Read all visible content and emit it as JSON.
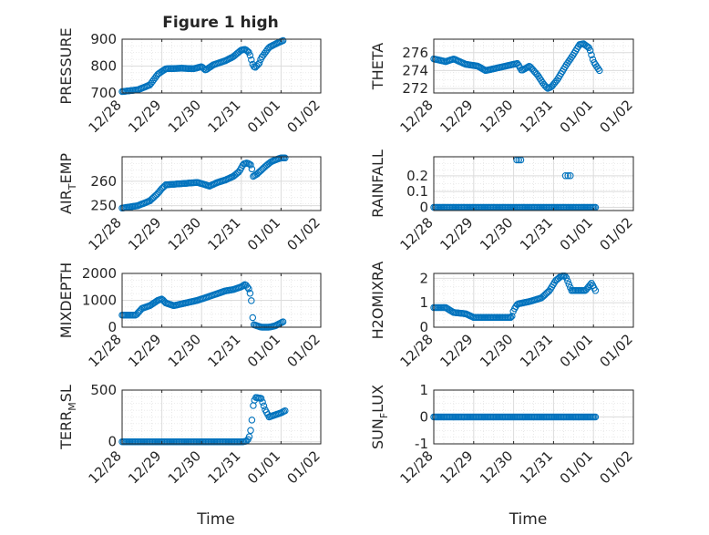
{
  "figure": {
    "title": "Figure 1 high",
    "marker_color": "#0072BD",
    "time_label": "Time"
  },
  "chart_data": [
    {
      "type": "scatter",
      "ylabel": "PRESSURE",
      "title": "Figure 1 high",
      "xlim": [
        0,
        5
      ],
      "ylim": [
        700,
        900
      ],
      "yticks": [
        700,
        800,
        900
      ],
      "xtick_labels": [
        "12/28",
        "12/29",
        "12/30",
        "12/31",
        "01/01",
        "01/02"
      ],
      "grid": "minor+major",
      "series": [
        {
          "anchors": [
            [
              0,
              705
            ],
            [
              0.4,
              712
            ],
            [
              0.7,
              730
            ],
            [
              0.9,
              770
            ],
            [
              1.1,
              790
            ],
            [
              1.5,
              792
            ],
            [
              1.8,
              790
            ],
            [
              2.0,
              798
            ],
            [
              2.1,
              785
            ],
            [
              2.3,
              805
            ],
            [
              2.6,
              820
            ],
            [
              2.8,
              835
            ],
            [
              3.0,
              860
            ],
            [
              3.1,
              862
            ],
            [
              3.2,
              850
            ],
            [
              3.3,
              800
            ],
            [
              3.35,
              795
            ],
            [
              3.45,
              810
            ],
            [
              3.5,
              830
            ],
            [
              3.7,
              870
            ],
            [
              3.9,
              885
            ],
            [
              4.05,
              895
            ]
          ]
        }
      ]
    },
    {
      "type": "scatter",
      "ylabel": "THETA",
      "xlim": [
        0,
        5
      ],
      "ylim": [
        271.5,
        277.5
      ],
      "yticks": [
        272,
        274,
        276
      ],
      "xtick_labels": [
        "12/28",
        "12/29",
        "12/30",
        "12/31",
        "01/01",
        "01/02"
      ],
      "grid": "minor+major",
      "series": [
        {
          "anchors": [
            [
              0,
              275.3
            ],
            [
              0.3,
              275.0
            ],
            [
              0.5,
              275.3
            ],
            [
              0.8,
              274.7
            ],
            [
              1.1,
              274.5
            ],
            [
              1.3,
              274.0
            ],
            [
              1.6,
              274.3
            ],
            [
              1.9,
              274.6
            ],
            [
              2.1,
              274.8
            ],
            [
              2.2,
              274.0
            ],
            [
              2.4,
              274.5
            ],
            [
              2.6,
              273.5
            ],
            [
              2.75,
              272.5
            ],
            [
              2.85,
              272.0
            ],
            [
              2.95,
              272.2
            ],
            [
              3.1,
              273.0
            ],
            [
              3.3,
              274.5
            ],
            [
              3.5,
              275.8
            ],
            [
              3.65,
              276.9
            ],
            [
              3.75,
              277.0
            ],
            [
              3.9,
              276.5
            ],
            [
              4.0,
              275.0
            ],
            [
              4.15,
              274.0
            ]
          ]
        }
      ]
    },
    {
      "type": "scatter",
      "ylabel": "AIR_T EMP",
      "ylabel_parts": [
        "AIR",
        "T",
        "EMP"
      ],
      "xlim": [
        0,
        5
      ],
      "ylim": [
        248,
        270
      ],
      "yticks": [
        250,
        260
      ],
      "xtick_labels": [
        "12/28",
        "12/29",
        "12/30",
        "12/31",
        "01/01",
        "01/02"
      ],
      "grid": "minor+major",
      "series": [
        {
          "anchors": [
            [
              0,
              249
            ],
            [
              0.4,
              250
            ],
            [
              0.7,
              252
            ],
            [
              0.9,
              255
            ],
            [
              1.0,
              257
            ],
            [
              1.1,
              258.5
            ],
            [
              1.5,
              259
            ],
            [
              1.9,
              259.5
            ],
            [
              2.1,
              258.5
            ],
            [
              2.2,
              258
            ],
            [
              2.4,
              259.5
            ],
            [
              2.6,
              260.5
            ],
            [
              2.8,
              262
            ],
            [
              2.95,
              264
            ],
            [
              3.05,
              267
            ],
            [
              3.15,
              267.5
            ],
            [
              3.25,
              266.5
            ],
            [
              3.3,
              262
            ],
            [
              3.4,
              263
            ],
            [
              3.5,
              264.5
            ],
            [
              3.6,
              266
            ],
            [
              3.75,
              268
            ],
            [
              3.9,
              269
            ],
            [
              4.0,
              269.5
            ],
            [
              4.1,
              269.5
            ]
          ]
        }
      ]
    },
    {
      "type": "scatter",
      "ylabel": "RAINFALL",
      "xlim": [
        0,
        5
      ],
      "ylim": [
        -0.02,
        0.32
      ],
      "yticks": [
        0,
        0.1,
        0.2
      ],
      "xtick_labels": [
        "12/28",
        "12/29",
        "12/30",
        "12/31",
        "01/01",
        "01/02"
      ],
      "grid": "minor+major",
      "series": [
        {
          "anchors": [
            [
              0,
              0
            ],
            [
              4.05,
              0
            ]
          ],
          "extra_points": [
            [
              2.08,
              0.3
            ],
            [
              2.13,
              0.3
            ],
            [
              2.18,
              0.3
            ],
            [
              3.3,
              0.2
            ],
            [
              3.36,
              0.2
            ],
            [
              3.42,
              0.2
            ]
          ]
        }
      ]
    },
    {
      "type": "scatter",
      "ylabel": "MIXDEPTH",
      "xlim": [
        0,
        5
      ],
      "ylim": [
        0,
        2000
      ],
      "yticks": [
        0,
        1000,
        2000
      ],
      "xtick_labels": [
        "12/28",
        "12/29",
        "12/30",
        "12/31",
        "01/01",
        "01/02"
      ],
      "grid": "minor+major",
      "series": [
        {
          "anchors": [
            [
              0,
              450
            ],
            [
              0.35,
              450
            ],
            [
              0.5,
              700
            ],
            [
              0.7,
              800
            ],
            [
              0.9,
              1000
            ],
            [
              1.0,
              1050
            ],
            [
              1.1,
              900
            ],
            [
              1.3,
              800
            ],
            [
              1.6,
              900
            ],
            [
              1.9,
              1000
            ],
            [
              2.1,
              1100
            ],
            [
              2.3,
              1200
            ],
            [
              2.6,
              1350
            ],
            [
              2.8,
              1400
            ],
            [
              3.0,
              1500
            ],
            [
              3.1,
              1600
            ],
            [
              3.2,
              1400
            ],
            [
              3.25,
              1050
            ],
            [
              3.3,
              100
            ],
            [
              3.5,
              0
            ],
            [
              3.7,
              0
            ],
            [
              3.85,
              50
            ],
            [
              4.05,
              200
            ]
          ]
        }
      ]
    },
    {
      "type": "scatter",
      "ylabel": "H2OMIXRA",
      "xlim": [
        0,
        5
      ],
      "ylim": [
        0,
        2.2
      ],
      "yticks": [
        0,
        1,
        2
      ],
      "xtick_labels": [
        "12/28",
        "12/29",
        "12/30",
        "12/31",
        "01/01",
        "01/02"
      ],
      "grid": "minor+major",
      "series": [
        {
          "anchors": [
            [
              0,
              0.8
            ],
            [
              0.3,
              0.8
            ],
            [
              0.5,
              0.6
            ],
            [
              0.8,
              0.55
            ],
            [
              1.0,
              0.4
            ],
            [
              1.5,
              0.4
            ],
            [
              1.95,
              0.4
            ],
            [
              2.0,
              0.7
            ],
            [
              2.1,
              0.95
            ],
            [
              2.4,
              1.05
            ],
            [
              2.7,
              1.2
            ],
            [
              2.9,
              1.5
            ],
            [
              3.05,
              1.9
            ],
            [
              3.2,
              2.1
            ],
            [
              3.3,
              2.1
            ],
            [
              3.4,
              1.7
            ],
            [
              3.45,
              1.5
            ],
            [
              3.6,
              1.5
            ],
            [
              3.8,
              1.5
            ],
            [
              3.95,
              1.8
            ],
            [
              4.05,
              1.5
            ]
          ]
        }
      ]
    },
    {
      "type": "scatter",
      "ylabel": "TERR_M SL",
      "ylabel_parts": [
        "TERR",
        "M",
        "SL"
      ],
      "xlim": [
        0,
        5
      ],
      "ylim": [
        -20,
        500
      ],
      "yticks": [
        0,
        500
      ],
      "xtick_labels": [
        "12/28",
        "12/29",
        "12/30",
        "12/31",
        "01/01",
        "01/02"
      ],
      "xlabel": "Time",
      "grid": "minor+major",
      "series": [
        {
          "anchors": [
            [
              0,
              0
            ],
            [
              3.05,
              0
            ],
            [
              3.15,
              10
            ],
            [
              3.2,
              50
            ],
            [
              3.25,
              140
            ],
            [
              3.3,
              350
            ],
            [
              3.35,
              430
            ],
            [
              3.5,
              420
            ],
            [
              3.6,
              310
            ],
            [
              3.7,
              240
            ],
            [
              3.85,
              260
            ],
            [
              4.0,
              280
            ],
            [
              4.1,
              300
            ]
          ]
        }
      ]
    },
    {
      "type": "scatter",
      "ylabel": "SUN_F LUX",
      "ylabel_parts": [
        "SUN",
        "F",
        "LUX"
      ],
      "xlim": [
        0,
        5
      ],
      "ylim": [
        -1,
        1
      ],
      "yticks": [
        -1,
        0,
        1
      ],
      "xtick_labels": [
        "12/28",
        "12/29",
        "12/30",
        "12/31",
        "01/01",
        "01/02"
      ],
      "xlabel": "Time",
      "grid": "minor+major",
      "series": [
        {
          "anchors": [
            [
              0,
              0
            ],
            [
              4.05,
              0
            ]
          ]
        }
      ]
    }
  ]
}
